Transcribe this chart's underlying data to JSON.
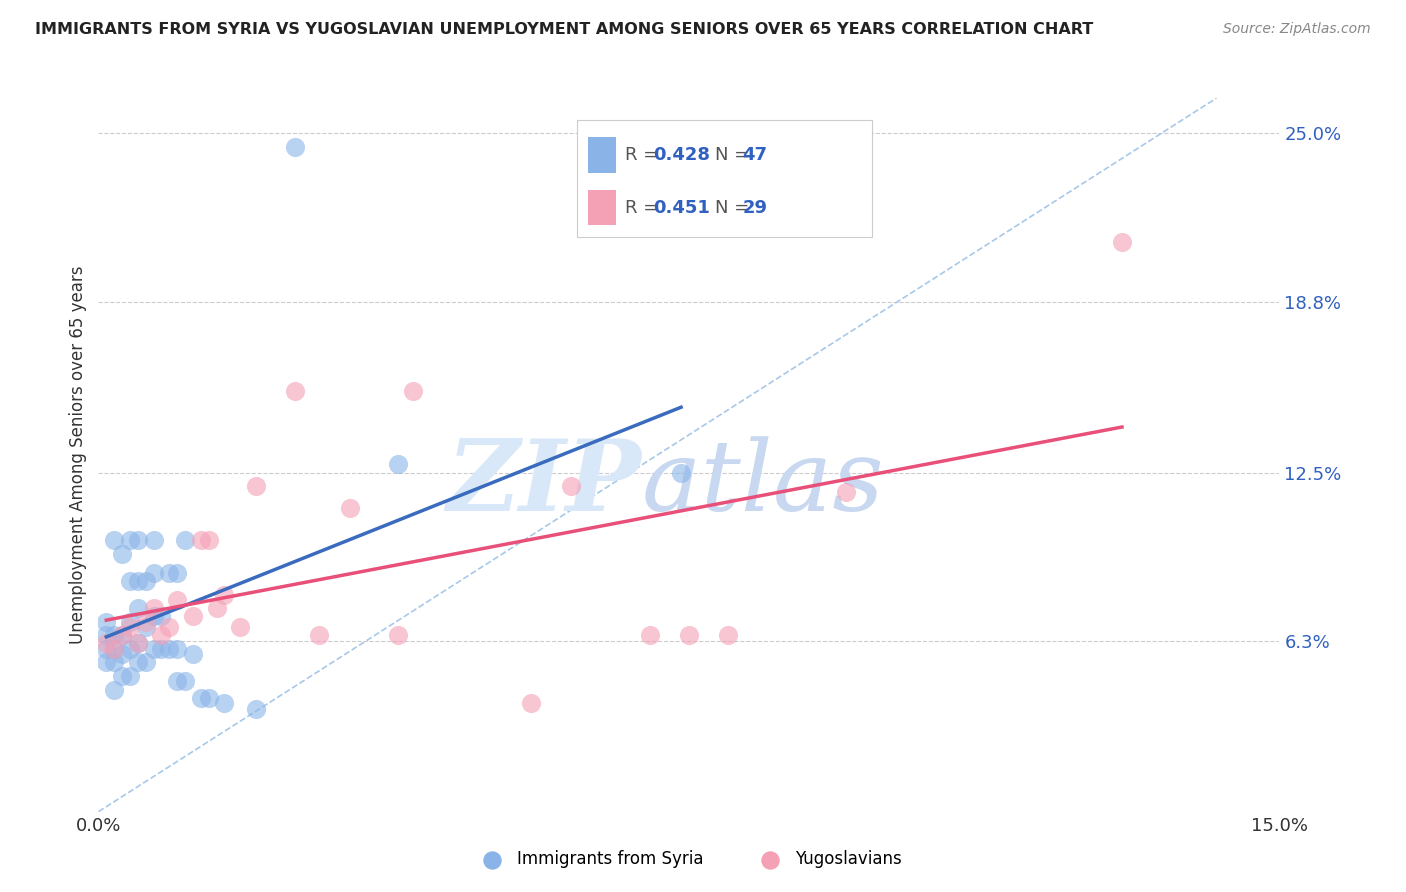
{
  "title": "IMMIGRANTS FROM SYRIA VS YUGOSLAVIAN UNEMPLOYMENT AMONG SENIORS OVER 65 YEARS CORRELATION CHART",
  "source": "Source: ZipAtlas.com",
  "ylabel": "Unemployment Among Seniors over 65 years",
  "xlim": [
    0,
    0.15
  ],
  "ylim": [
    0,
    0.263
  ],
  "yticks": [
    0.063,
    0.125,
    0.188,
    0.25
  ],
  "ytick_labels": [
    "6.3%",
    "12.5%",
    "18.8%",
    "25.0%"
  ],
  "R_syria": 0.428,
  "N_syria": 47,
  "R_yugo": 0.451,
  "N_yugo": 29,
  "color_syria": "#8ab4e8",
  "color_yugo": "#f4a0b5",
  "color_syria_line": "#3a6bbf",
  "color_yugo_line": "#e8507a",
  "color_diag_line": "#a8c8e8",
  "legend_label_syria": "Immigrants from Syria",
  "legend_label_yugo": "Yugoslavians",
  "watermark_color": "#d0dff0",
  "syria_x": [
    0.001,
    0.001,
    0.001,
    0.001,
    0.002,
    0.002,
    0.002,
    0.002,
    0.002,
    0.003,
    0.003,
    0.003,
    0.003,
    0.004,
    0.004,
    0.004,
    0.004,
    0.004,
    0.005,
    0.005,
    0.005,
    0.005,
    0.005,
    0.006,
    0.006,
    0.006,
    0.007,
    0.007,
    0.007,
    0.007,
    0.008,
    0.008,
    0.009,
    0.009,
    0.01,
    0.01,
    0.01,
    0.011,
    0.011,
    0.012,
    0.013,
    0.014,
    0.016,
    0.02,
    0.025,
    0.038,
    0.074
  ],
  "syria_y": [
    0.055,
    0.06,
    0.065,
    0.07,
    0.045,
    0.055,
    0.06,
    0.065,
    0.1,
    0.05,
    0.058,
    0.065,
    0.095,
    0.05,
    0.06,
    0.07,
    0.085,
    0.1,
    0.055,
    0.062,
    0.075,
    0.085,
    0.1,
    0.055,
    0.068,
    0.085,
    0.06,
    0.072,
    0.088,
    0.1,
    0.06,
    0.072,
    0.06,
    0.088,
    0.048,
    0.06,
    0.088,
    0.048,
    0.1,
    0.058,
    0.042,
    0.042,
    0.04,
    0.038,
    0.245,
    0.128,
    0.125
  ],
  "yugo_x": [
    0.001,
    0.002,
    0.003,
    0.004,
    0.005,
    0.006,
    0.007,
    0.008,
    0.009,
    0.01,
    0.012,
    0.013,
    0.014,
    0.015,
    0.016,
    0.018,
    0.02,
    0.025,
    0.028,
    0.032,
    0.038,
    0.04,
    0.055,
    0.06,
    0.07,
    0.075,
    0.08,
    0.095,
    0.13
  ],
  "yugo_y": [
    0.062,
    0.06,
    0.065,
    0.068,
    0.062,
    0.07,
    0.075,
    0.065,
    0.068,
    0.078,
    0.072,
    0.1,
    0.1,
    0.075,
    0.08,
    0.068,
    0.12,
    0.155,
    0.065,
    0.112,
    0.065,
    0.155,
    0.04,
    0.12,
    0.065,
    0.065,
    0.065,
    0.118,
    0.21
  ]
}
